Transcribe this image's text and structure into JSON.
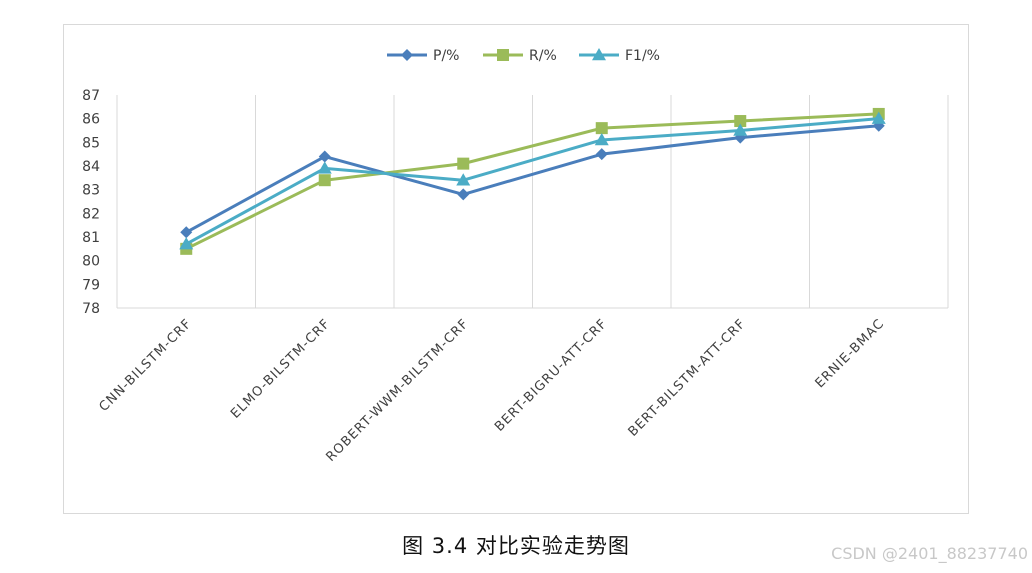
{
  "chart_data": {
    "type": "line",
    "categories": [
      "CNN-BILSTM-CRF",
      "ELMO-BILSTM-CRF",
      "ROBERT-WWM-BILSTM-CRF",
      "BERT-BIGRU-ATT-CRF",
      "BERT-BILSTM-ATT-CRF",
      "ERNIE-BMAC"
    ],
    "series": [
      {
        "name": "P/%",
        "values": [
          81.2,
          84.4,
          82.8,
          84.5,
          85.2,
          85.7
        ],
        "color": "#4a7ebb",
        "marker": "diamond"
      },
      {
        "name": "R/%",
        "values": [
          80.5,
          83.4,
          84.1,
          85.6,
          85.9,
          86.2
        ],
        "color": "#9bbb59",
        "marker": "square"
      },
      {
        "name": "F1/%",
        "values": [
          80.7,
          83.9,
          83.4,
          85.1,
          85.5,
          86.0
        ],
        "color": "#4bacc6",
        "marker": "triangle"
      }
    ],
    "ylim": [
      78,
      87
    ],
    "yticks": [
      78,
      79,
      80,
      81,
      82,
      83,
      84,
      85,
      86,
      87
    ],
    "grid": "vertical",
    "legend": "top-center",
    "title": "",
    "xlabel": "",
    "ylabel": ""
  },
  "caption": "图 3.4 对比实验走势图",
  "watermark": "CSDN @2401_88237740"
}
